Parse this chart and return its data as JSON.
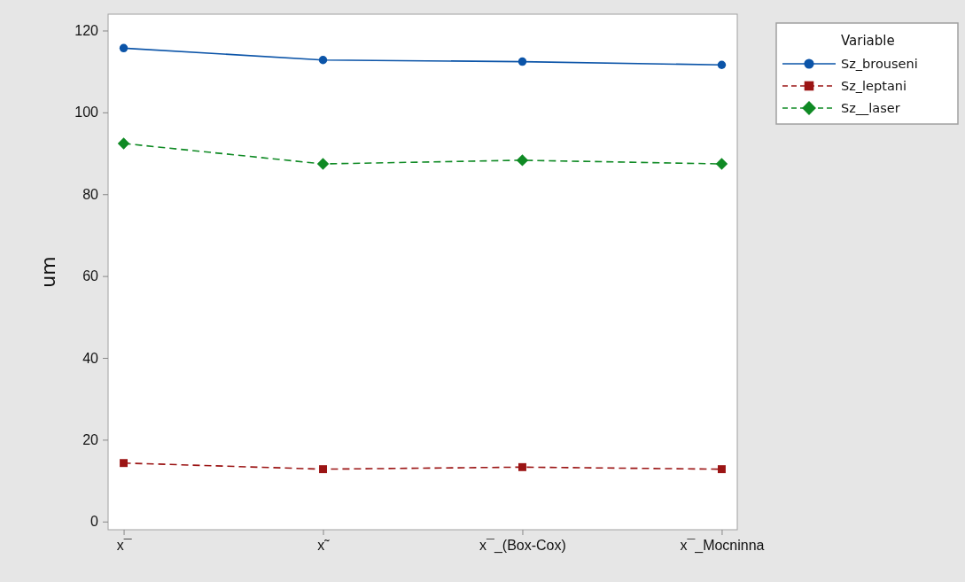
{
  "chart_data": {
    "type": "line",
    "ylabel": "um",
    "legend_title": "Variable",
    "legend": "top right",
    "grid": false,
    "categories": [
      "x¯",
      "x˜",
      "x¯_(Box-Cox)",
      "x¯_Mocninna"
    ],
    "ylim": [
      -2,
      124
    ],
    "yticks": [
      0,
      20,
      40,
      60,
      80,
      100,
      120
    ],
    "series": [
      {
        "name": "Sz_brouseni",
        "color": "#0b54a8",
        "marker": "circle",
        "line_style": "solid",
        "values": [
          115.7,
          112.8,
          112.4,
          111.6
        ]
      },
      {
        "name": "Sz_leptani",
        "color": "#9b1414",
        "marker": "square",
        "line_style": "dashed",
        "values": [
          14.3,
          12.8,
          13.3,
          12.8
        ]
      },
      {
        "name": "Sz__laser",
        "color": "#0f8a24",
        "marker": "diamond",
        "line_style": "dashed",
        "values": [
          92.4,
          87.4,
          88.3,
          87.4
        ]
      }
    ]
  }
}
